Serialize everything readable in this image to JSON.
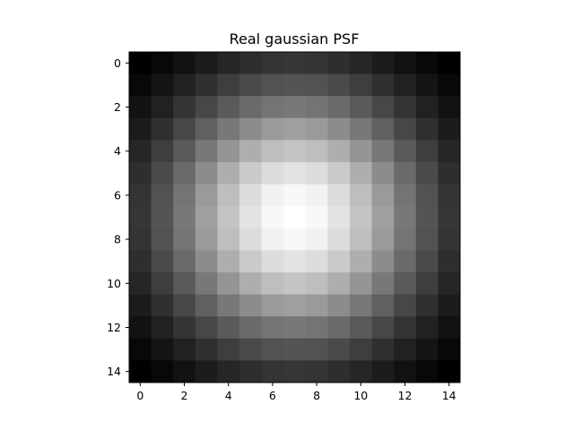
{
  "chart_data": {
    "type": "heatmap",
    "title": "Real gaussian PSF",
    "xlabel": "",
    "ylabel": "",
    "colormap": "gray",
    "grid_size": [
      15,
      15
    ],
    "xlim": [
      -0.5,
      14.5
    ],
    "ylim": [
      14.5,
      -0.5
    ],
    "xticks": [
      0,
      2,
      4,
      6,
      8,
      10,
      12,
      14
    ],
    "yticks": [
      0,
      2,
      4,
      6,
      8,
      10,
      12,
      14
    ],
    "gaussian": {
      "center_x": 7,
      "center_y": 7,
      "sigma": 4.3
    },
    "grid": false
  }
}
